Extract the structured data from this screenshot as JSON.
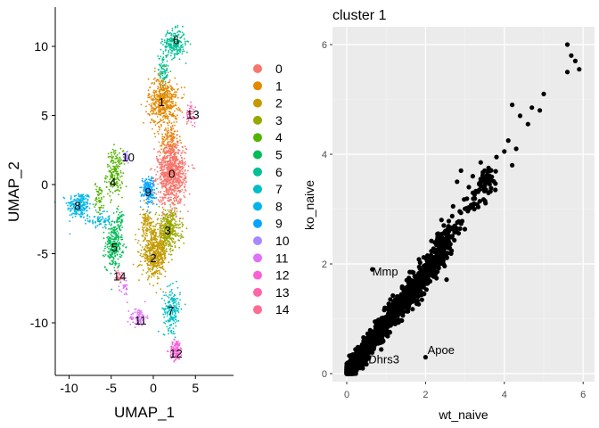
{
  "chart_data": [
    {
      "type": "scatter",
      "subtype": "umap",
      "xlabel": "UMAP_1",
      "ylabel": "UMAP_2",
      "xlim": [
        -12,
        9
      ],
      "ylim": [
        -15,
        12
      ],
      "xticks": [
        -10,
        -5,
        0,
        5
      ],
      "yticks": [
        -10,
        -5,
        0,
        5,
        10
      ],
      "grid": false,
      "legend_position": "right",
      "clusters": [
        {
          "name": "0",
          "color": "#F8766D",
          "label_pos": [
            2.2,
            0.8
          ]
        },
        {
          "name": "1",
          "color": "#E38900",
          "label_pos": [
            1.0,
            6.0
          ]
        },
        {
          "name": "2",
          "color": "#C49A00",
          "label_pos": [
            0.0,
            -5.3
          ]
        },
        {
          "name": "3",
          "color": "#99A800",
          "label_pos": [
            1.7,
            -3.3
          ]
        },
        {
          "name": "4",
          "color": "#53B400",
          "label_pos": [
            -4.8,
            0.2
          ]
        },
        {
          "name": "5",
          "color": "#00BC56",
          "label_pos": [
            -4.6,
            -4.5
          ]
        },
        {
          "name": "6",
          "color": "#00C094",
          "label_pos": [
            2.7,
            10.5
          ]
        },
        {
          "name": "7",
          "color": "#00BFC4",
          "label_pos": [
            2.1,
            -9.1
          ]
        },
        {
          "name": "8",
          "color": "#00B6EB",
          "label_pos": [
            -9.0,
            -1.5
          ]
        },
        {
          "name": "9",
          "color": "#06A4FF",
          "label_pos": [
            -0.6,
            -0.5
          ]
        },
        {
          "name": "10",
          "color": "#A58AFF",
          "label_pos": [
            -3.0,
            2.0
          ]
        },
        {
          "name": "11",
          "color": "#DF70F8",
          "label_pos": [
            -1.5,
            -9.8
          ]
        },
        {
          "name": "12",
          "color": "#FB61D7",
          "label_pos": [
            2.7,
            -12.2
          ]
        },
        {
          "name": "13",
          "color": "#FF66A8",
          "label_pos": [
            4.7,
            5.1
          ]
        },
        {
          "name": "14",
          "color": "#FF6C91",
          "label_pos": [
            -4.0,
            -6.6
          ]
        }
      ]
    },
    {
      "type": "scatter",
      "title": "cluster 1",
      "xlabel": "wt_naive",
      "ylabel": "ko_naive",
      "xlim": [
        -0.3,
        6.1
      ],
      "ylim": [
        -0.15,
        6.3
      ],
      "xticks": [
        0,
        2,
        4,
        6
      ],
      "yticks": [
        0,
        2,
        4,
        6
      ],
      "grid": true,
      "panel_background": "#EBEBEB",
      "point_color": "#000000",
      "outlier_points": [
        [
          5.6,
          6.0
        ],
        [
          5.7,
          5.8
        ],
        [
          5.8,
          5.7
        ],
        [
          5.6,
          5.5
        ],
        [
          5.9,
          5.55
        ],
        [
          5.0,
          5.1
        ],
        [
          4.9,
          4.8
        ],
        [
          4.7,
          4.85
        ],
        [
          4.4,
          4.7
        ],
        [
          4.6,
          4.55
        ],
        [
          4.2,
          4.9
        ],
        [
          4.3,
          4.1
        ],
        [
          4.1,
          4.25
        ],
        [
          4.0,
          4.05
        ],
        [
          3.8,
          3.95
        ],
        [
          3.6,
          3.75
        ],
        [
          3.4,
          3.55
        ],
        [
          3.4,
          3.85
        ],
        [
          3.2,
          3.6
        ],
        [
          2.8,
          3.5
        ],
        [
          3.5,
          3.7
        ],
        [
          3.1,
          3.4
        ],
        [
          2.7,
          3.05
        ],
        [
          4.2,
          3.8
        ],
        [
          2.9,
          3.7
        ]
      ],
      "annotations": [
        {
          "text": "Mmp",
          "x": 0.65,
          "y": 1.85
        },
        {
          "text": "Apoe",
          "x": 2.05,
          "y": 0.42
        },
        {
          "text": "Dhrs3",
          "x": 0.55,
          "y": 0.25
        }
      ],
      "highlighted_points": [
        [
          0.65,
          1.9
        ],
        [
          2.0,
          0.3
        ],
        [
          0.5,
          0.25
        ]
      ]
    }
  ]
}
